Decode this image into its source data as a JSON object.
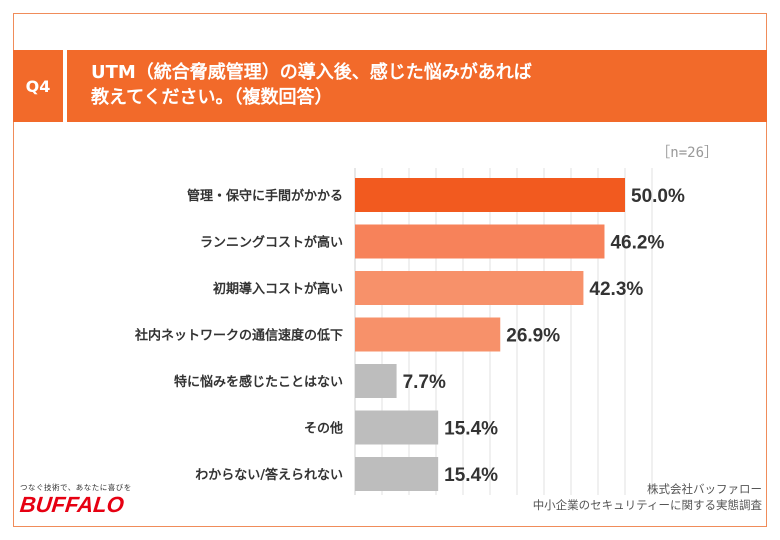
{
  "header": {
    "badge": "Q4",
    "title_line1": "UTM（統合脅威管理）の導入後、感じた悩みがあれば",
    "title_line2": "教えてください。（複数回答）"
  },
  "sample_note": "［n=26］",
  "chart_data": {
    "type": "bar",
    "orientation": "horizontal",
    "categories": [
      "管理・保守に手間がかかる",
      "ランニングコストが高い",
      "初期導入コストが高い",
      "社内ネットワークの通信速度の低下",
      "特に悩みを感じたことはない",
      "その他",
      "わからない/答えられない"
    ],
    "values": [
      50.0,
      46.2,
      42.3,
      26.9,
      7.7,
      15.4,
      15.4
    ],
    "value_labels": [
      "50.0%",
      "46.2%",
      "42.3%",
      "26.9%",
      "7.7%",
      "15.4%",
      "15.4%"
    ],
    "colors": [
      "#f25a1f",
      "#f7825a",
      "#f7916a",
      "#f7916a",
      "#bdbdbd",
      "#bdbdbd",
      "#bdbdbd"
    ],
    "xlim": [
      0,
      55
    ],
    "grid": true,
    "legend": "none"
  },
  "branding": {
    "tagline": "つなぐ技術で、あなたに喜びを",
    "logo": "BUFFALO"
  },
  "source": {
    "line1": "株式会社バッファロー",
    "line2": "中小企業のセキュリティーに関する実態調査"
  }
}
